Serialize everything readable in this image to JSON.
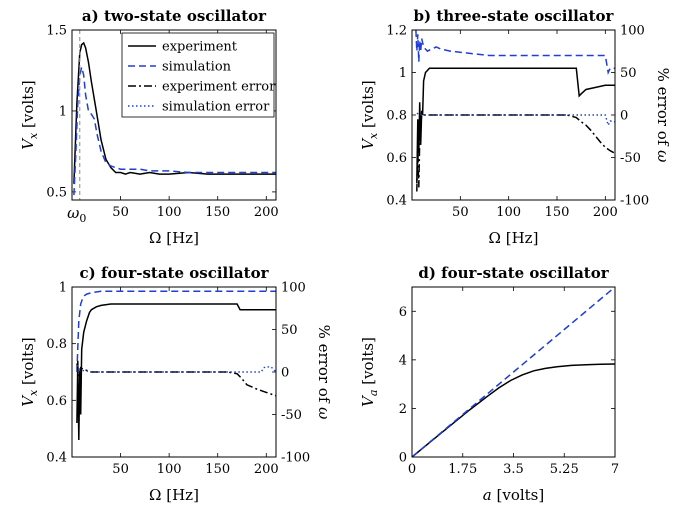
{
  "chart_data": [
    {
      "type": "line",
      "title": "a) two-state oscillator",
      "xlabel": "Ω [Hz]",
      "ylabel": "V_x [volts]",
      "xlim": [
        0,
        210
      ],
      "ylim": [
        0.45,
        1.5
      ],
      "x_ticks": [
        50,
        100,
        150,
        200
      ],
      "y_ticks": [
        0.5,
        1,
        1.5
      ],
      "y_tick_labels": [
        "0.5",
        "1",
        "1.5"
      ],
      "x_annotation": {
        "label": "ω",
        "subscript": "0",
        "x": 8
      },
      "grid": false,
      "legend_position": "top-right",
      "legend": [
        {
          "label": "experiment",
          "color": "#000000",
          "style": "solid"
        },
        {
          "label": "simulation",
          "color": "#1f3fd8",
          "style": "dashed"
        },
        {
          "label": "experiment error",
          "color": "#000000",
          "style": "dashdot"
        },
        {
          "label": "simulation error",
          "color": "#1f3fd8",
          "style": "dotted"
        }
      ],
      "series": [
        {
          "name": "experiment",
          "color": "#000000",
          "style": "solid",
          "axis": "left",
          "x": [
            2,
            5,
            8,
            10,
            12,
            14,
            17,
            20,
            25,
            30,
            35,
            40,
            45,
            50,
            55,
            60,
            70,
            80,
            90,
            100,
            120,
            140,
            160,
            180,
            200,
            210
          ],
          "y": [
            0.55,
            1.05,
            1.36,
            1.41,
            1.42,
            1.39,
            1.3,
            1.18,
            1.0,
            0.82,
            0.7,
            0.65,
            0.62,
            0.62,
            0.61,
            0.62,
            0.61,
            0.62,
            0.61,
            0.61,
            0.62,
            0.61,
            0.61,
            0.61,
            0.61,
            0.61
          ]
        },
        {
          "name": "simulation",
          "color": "#1f3fd8",
          "style": "dashed",
          "axis": "left",
          "x": [
            2,
            4,
            6,
            8,
            10,
            12,
            14,
            17,
            20,
            23,
            26,
            30,
            35,
            40,
            45,
            50,
            60,
            70,
            80,
            90,
            100,
            120,
            140,
            160,
            180,
            200,
            210
          ],
          "y": [
            0.48,
            0.75,
            1.05,
            1.22,
            1.27,
            1.22,
            1.1,
            1.0,
            0.98,
            0.95,
            0.85,
            0.75,
            0.68,
            0.66,
            0.65,
            0.64,
            0.64,
            0.64,
            0.63,
            0.63,
            0.63,
            0.62,
            0.62,
            0.62,
            0.62,
            0.62,
            0.62
          ]
        }
      ]
    },
    {
      "type": "line",
      "title": "b) three-state oscillator",
      "xlabel": "Ω [Hz]",
      "ylabel": "V_x [volts]",
      "ylabel_right": "% error of ω",
      "xlim": [
        0,
        210
      ],
      "ylim": [
        0.4,
        1.2
      ],
      "ylim_right": [
        -100,
        100
      ],
      "x_ticks": [
        50,
        100,
        150,
        200
      ],
      "y_ticks": [
        0.4,
        0.6,
        0.8,
        1,
        1.2
      ],
      "y_tick_labels": [
        "0.4",
        "0.6",
        "0.8",
        "1",
        "1.2"
      ],
      "y_ticks_right": [
        -100,
        -50,
        0,
        50,
        100
      ],
      "grid": false,
      "series": [
        {
          "name": "experiment",
          "color": "#000000",
          "style": "solid",
          "axis": "left",
          "x": [
            5,
            6,
            7,
            8,
            9,
            10,
            11,
            12,
            14,
            16,
            18,
            20,
            25,
            30,
            40,
            60,
            80,
            100,
            120,
            140,
            160,
            170,
            173,
            175,
            180,
            190,
            200,
            210
          ],
          "y": [
            0.48,
            0.78,
            0.62,
            0.86,
            0.66,
            0.82,
            0.8,
            0.96,
            1.0,
            1.01,
            1.02,
            1.02,
            1.02,
            1.02,
            1.02,
            1.02,
            1.02,
            1.02,
            1.02,
            1.02,
            1.02,
            1.02,
            0.89,
            0.9,
            0.92,
            0.93,
            0.94,
            0.94
          ]
        },
        {
          "name": "simulation",
          "color": "#1f3fd8",
          "style": "dashed",
          "axis": "left",
          "x": [
            4,
            5,
            6,
            7,
            8,
            9,
            10,
            12,
            14,
            16,
            20,
            25,
            30,
            40,
            60,
            80,
            100,
            120,
            140,
            160,
            180,
            200,
            203,
            205,
            210
          ],
          "y": [
            1.2,
            1.1,
            1.18,
            1.05,
            1.15,
            1.1,
            1.16,
            1.12,
            1.11,
            1.1,
            1.11,
            1.12,
            1.11,
            1.1,
            1.09,
            1.08,
            1.08,
            1.08,
            1.08,
            1.08,
            1.08,
            1.08,
            1.0,
            1.02,
            1.02
          ]
        },
        {
          "name": "experiment error",
          "color": "#000000",
          "style": "dashdot",
          "axis": "right",
          "x": [
            5,
            6,
            7,
            8,
            9,
            10,
            12,
            14,
            20,
            40,
            80,
            120,
            160,
            170,
            175,
            180,
            185,
            190,
            195,
            200,
            205,
            210
          ],
          "y": [
            -90,
            -40,
            -85,
            -30,
            -10,
            0,
            0,
            0,
            0,
            0,
            0,
            0,
            0,
            -3,
            -8,
            -12,
            -18,
            -25,
            -32,
            -38,
            -42,
            -45
          ]
        },
        {
          "name": "simulation error",
          "color": "#1f3fd8",
          "style": "dotted",
          "axis": "right",
          "x": [
            5,
            8,
            10,
            20,
            40,
            80,
            120,
            160,
            180,
            190,
            200,
            203,
            205,
            210
          ],
          "y": [
            2,
            1,
            0,
            0,
            0,
            0,
            0,
            0,
            0,
            0,
            0,
            -12,
            -7,
            -8
          ]
        }
      ]
    },
    {
      "type": "line",
      "title": "c) four-state oscillator",
      "xlabel": "Ω [Hz]",
      "ylabel": "V_x [volts]",
      "ylabel_right": "% error of ω",
      "xlim": [
        0,
        210
      ],
      "ylim": [
        0.4,
        1.0
      ],
      "ylim_right": [
        -100,
        100
      ],
      "x_ticks": [
        50,
        100,
        150,
        200
      ],
      "y_ticks": [
        0.4,
        0.6,
        0.8,
        1
      ],
      "y_tick_labels": [
        "0.4",
        "0.6",
        "0.8",
        "1"
      ],
      "y_ticks_right": [
        -100,
        -50,
        0,
        50,
        100
      ],
      "grid": false,
      "series": [
        {
          "name": "experiment",
          "color": "#000000",
          "style": "solid",
          "axis": "left",
          "x": [
            5,
            6,
            7,
            8,
            9,
            10,
            12,
            15,
            18,
            20,
            25,
            30,
            40,
            60,
            80,
            100,
            120,
            140,
            160,
            170,
            173,
            175,
            180,
            190,
            200,
            210
          ],
          "y": [
            0.52,
            0.74,
            0.46,
            0.7,
            0.55,
            0.78,
            0.84,
            0.88,
            0.91,
            0.92,
            0.93,
            0.935,
            0.94,
            0.94,
            0.94,
            0.94,
            0.94,
            0.94,
            0.94,
            0.94,
            0.92,
            0.92,
            0.92,
            0.92,
            0.92,
            0.92
          ]
        },
        {
          "name": "simulation",
          "color": "#1f3fd8",
          "style": "dashed",
          "axis": "left",
          "x": [
            5,
            7,
            9,
            11,
            13,
            15,
            20,
            30,
            50,
            100,
            150,
            200,
            210
          ],
          "y": [
            0.7,
            0.88,
            0.94,
            0.96,
            0.97,
            0.975,
            0.98,
            0.985,
            0.985,
            0.985,
            0.985,
            0.985,
            0.985
          ]
        },
        {
          "name": "experiment error",
          "color": "#000000",
          "style": "dashdot",
          "axis": "right",
          "x": [
            5,
            7,
            9,
            12,
            15,
            20,
            40,
            80,
            120,
            160,
            170,
            175,
            180,
            190,
            200,
            210
          ],
          "y": [
            10,
            -5,
            5,
            3,
            2,
            0,
            0,
            0,
            0,
            0,
            -2,
            -8,
            -15,
            -20,
            -24,
            -28
          ]
        },
        {
          "name": "simulation error",
          "color": "#1f3fd8",
          "style": "dotted",
          "axis": "right",
          "x": [
            5,
            8,
            10,
            15,
            20,
            40,
            80,
            120,
            160,
            195,
            197,
            200,
            205,
            210
          ],
          "y": [
            8,
            3,
            2,
            1,
            0,
            0,
            0,
            0,
            0,
            0,
            5,
            6,
            6,
            0
          ]
        }
      ]
    },
    {
      "type": "line",
      "title": "d) four-state oscillator",
      "xlabel": "a [volts]",
      "ylabel": "V_a [volts]",
      "xlim": [
        0,
        7
      ],
      "ylim": [
        0,
        7
      ],
      "x_ticks": [
        0,
        1.75,
        3.5,
        5.25,
        7
      ],
      "x_tick_labels": [
        "0",
        "1.75",
        "3.5",
        "5.25",
        "7"
      ],
      "y_ticks": [
        0,
        2,
        4,
        6
      ],
      "y_tick_labels": [
        "0",
        "2",
        "4",
        "6"
      ],
      "grid": false,
      "series": [
        {
          "name": "experiment",
          "color": "#000000",
          "style": "solid",
          "axis": "left",
          "x": [
            0,
            1,
            2,
            2.6,
            3.0,
            3.4,
            3.8,
            4.2,
            4.6,
            5.0,
            5.5,
            6.0,
            6.5,
            7.0
          ],
          "y": [
            0,
            0.98,
            1.95,
            2.5,
            2.85,
            3.15,
            3.38,
            3.55,
            3.65,
            3.72,
            3.77,
            3.8,
            3.82,
            3.83
          ]
        },
        {
          "name": "simulation",
          "color": "#1f3fd8",
          "style": "dashed",
          "axis": "left",
          "x": [
            0,
            7
          ],
          "y": [
            0,
            7
          ]
        }
      ]
    }
  ]
}
